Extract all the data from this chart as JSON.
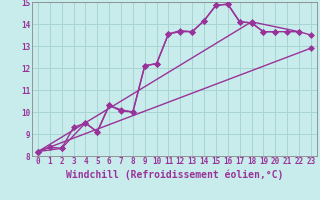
{
  "background_color": "#c8ecec",
  "grid_color": "#a8d4d4",
  "line_color": "#993399",
  "xlabel": "Windchill (Refroidissement éolien,°C)",
  "xlim": [
    -0.5,
    23.5
  ],
  "ylim": [
    8,
    15
  ],
  "xticks": [
    0,
    1,
    2,
    3,
    4,
    5,
    6,
    7,
    8,
    9,
    10,
    11,
    12,
    13,
    14,
    15,
    16,
    17,
    18,
    19,
    20,
    21,
    22,
    23
  ],
  "yticks": [
    8,
    9,
    10,
    11,
    12,
    13,
    14,
    15
  ],
  "line1_x": [
    0,
    1,
    2,
    3,
    4,
    5,
    6,
    7,
    8,
    9,
    10,
    11,
    12,
    13,
    14,
    15,
    16,
    17,
    18,
    19,
    20
  ],
  "line1_y": [
    8.2,
    8.4,
    8.35,
    9.3,
    9.5,
    9.1,
    10.3,
    10.1,
    10.0,
    12.1,
    12.2,
    13.55,
    13.7,
    13.65,
    14.15,
    14.85,
    14.9,
    14.1,
    14.05,
    13.65,
    13.65
  ],
  "line2_x": [
    0,
    2,
    4,
    5,
    6,
    7,
    8,
    9,
    10,
    11,
    12,
    13,
    14,
    15,
    16,
    17,
    18,
    19,
    20,
    21,
    22
  ],
  "line2_y": [
    8.2,
    8.35,
    9.5,
    9.1,
    10.3,
    10.05,
    10.0,
    12.1,
    12.2,
    13.55,
    13.65,
    13.65,
    14.15,
    14.85,
    14.9,
    14.1,
    14.05,
    13.65,
    13.65,
    13.65,
    13.65
  ],
  "line3_x": [
    0,
    23
  ],
  "line3_y": [
    8.2,
    12.9
  ],
  "line4_x": [
    0,
    18,
    22,
    23
  ],
  "line4_y": [
    8.2,
    14.1,
    13.65,
    13.5
  ],
  "marker": "D",
  "markersize": 3.0,
  "linewidth": 1.0,
  "tick_fontsize": 5.5,
  "label_fontsize": 7.0
}
